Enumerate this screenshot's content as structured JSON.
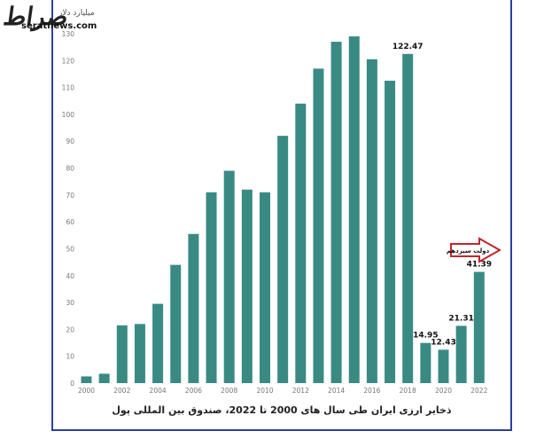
{
  "branding": {
    "logo_text": "صراط",
    "site": "seratnews.com"
  },
  "chart_data": {
    "type": "bar",
    "unit_label": "میلیارد دلار",
    "caption": "ذخایر ارزی ایران طی سال های 2000 تا 2022، صندوق بین المللی پول",
    "ylim": [
      0,
      130
    ],
    "yticks": [
      0,
      10,
      20,
      30,
      40,
      50,
      60,
      70,
      80,
      90,
      100,
      110,
      120,
      130
    ],
    "xticks": [
      "2000",
      "2002",
      "2004",
      "2006",
      "2008",
      "2010",
      "2012",
      "2014",
      "2016",
      "2018",
      "2020",
      "2022"
    ],
    "categories": [
      "2000",
      "2001",
      "2002",
      "2003",
      "2004",
      "2005",
      "2006",
      "2007",
      "2008",
      "2009",
      "2010",
      "2011",
      "2012",
      "2013",
      "2014",
      "2015",
      "2016",
      "2017",
      "2018",
      "2019",
      "2020",
      "2021",
      "2022"
    ],
    "values": [
      2.5,
      3.5,
      21.5,
      22,
      29.5,
      44,
      55.5,
      71,
      79,
      72,
      71,
      92,
      104,
      117,
      127,
      129,
      120.5,
      112.5,
      122.47,
      14.95,
      12.43,
      21.31,
      41.39
    ],
    "data_labels": [
      {
        "year": "2018",
        "text": "122.47"
      },
      {
        "year": "2019",
        "text": "14.95"
      },
      {
        "year": "2020",
        "text": "12.43"
      },
      {
        "year": "2021",
        "text": "21.31"
      },
      {
        "year": "2022",
        "text": "41.39"
      }
    ],
    "annotation": "دولت سیزدهم",
    "bar_color": "#3a8a84",
    "annotation_color": "#c0272d",
    "grid": false
  }
}
